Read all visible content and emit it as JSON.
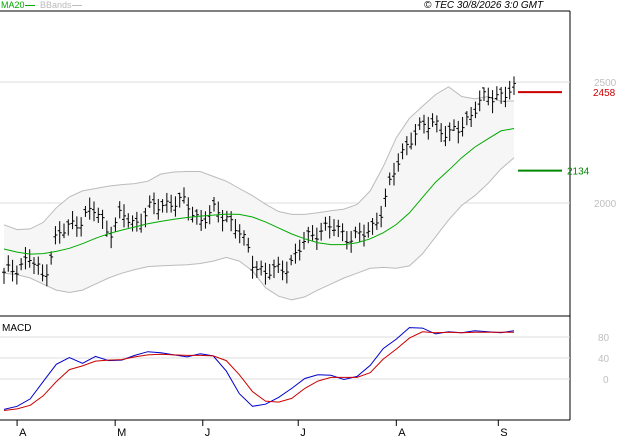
{
  "header": {
    "legend_ma": "MA20",
    "legend_bbands": "BBands",
    "copyright": "© TEC 30/8/2026 3:0 GMT"
  },
  "colors": {
    "ma": "#00aa00",
    "bbands": "#bbbbbb",
    "price": "#000000",
    "macd": "#0000cc",
    "signal": "#cc0000",
    "level_red": "#cc0000",
    "level_green": "#008800"
  },
  "chart_data": [
    {
      "type": "line",
      "title": "",
      "y_ticks": [
        "2500",
        "2000"
      ],
      "ylim": [
        1600,
        2800
      ],
      "levels": [
        {
          "value": 2458,
          "label": "2458",
          "color": "red"
        },
        {
          "value": 2134,
          "label": "2134",
          "color": "green"
        }
      ],
      "series": [
        {
          "name": "MA20",
          "values": [
            1810,
            1797,
            1789,
            1791,
            1800,
            1813,
            1832,
            1854,
            1873,
            1888,
            1901,
            1914,
            1924,
            1933,
            1940,
            1946,
            1950,
            1954,
            1953,
            1942,
            1922,
            1897,
            1872,
            1852,
            1836,
            1828,
            1828,
            1836,
            1852,
            1877,
            1911,
            1959,
            2023,
            2086,
            2135,
            2187,
            2231,
            2265,
            2298,
            2308
          ]
        },
        {
          "name": "BBands upper",
          "values": [
            1910,
            1890,
            1893,
            1920,
            1980,
            2025,
            2050,
            2060,
            2070,
            2076,
            2080,
            2090,
            2120,
            2128,
            2130,
            2130,
            2110,
            2090,
            2060,
            2030,
            1995,
            1965,
            1953,
            1953,
            1960,
            1968,
            1975,
            1994,
            2050,
            2150,
            2270,
            2350,
            2400,
            2448,
            2480,
            2440,
            2430,
            2440,
            2420,
            2422
          ]
        },
        {
          "name": "BBands lower",
          "values": [
            1710,
            1704,
            1690,
            1665,
            1640,
            1630,
            1640,
            1665,
            1690,
            1710,
            1725,
            1737,
            1740,
            1743,
            1745,
            1750,
            1760,
            1775,
            1760,
            1720,
            1650,
            1615,
            1600,
            1612,
            1640,
            1665,
            1690,
            1710,
            1730,
            1734,
            1730,
            1740,
            1790,
            1860,
            1930,
            1990,
            2030,
            2080,
            2140,
            2187
          ]
        }
      ],
      "candles_close": [
        1700,
        1740,
        1770,
        1690,
        1860,
        1900,
        1940,
        1970,
        1880,
        1950,
        1910,
        1970,
        1990,
        2010,
        1990,
        1930,
        1960,
        1950,
        1880,
        1760,
        1710,
        1720,
        1760,
        1840,
        1890,
        1900,
        1870,
        1860,
        1880,
        1990,
        2150,
        2270,
        2310,
        2340,
        2270,
        2320,
        2390,
        2440,
        2450,
        2460
      ]
    },
    {
      "type": "line",
      "title": "MACD",
      "y_ticks": [
        "80",
        "40",
        "0"
      ],
      "ylim": [
        -70,
        130
      ],
      "series": [
        {
          "name": "MACD",
          "values": [
            -58,
            -52,
            -38,
            -5,
            28,
            41,
            30,
            43,
            35,
            36,
            45,
            52,
            50,
            46,
            42,
            48,
            44,
            15,
            -28,
            -52,
            -48,
            -35,
            -18,
            1,
            8,
            7,
            -1,
            5,
            26,
            58,
            76,
            98,
            97,
            86,
            90,
            88,
            92,
            90,
            88,
            92
          ]
        },
        {
          "name": "Signal",
          "values": [
            -60,
            -57,
            -50,
            -32,
            -5,
            18,
            25,
            34,
            36,
            37,
            42,
            46,
            47,
            46,
            45,
            45,
            44,
            35,
            8,
            -24,
            -42,
            -44,
            -37,
            -18,
            -4,
            3,
            3,
            3,
            12,
            38,
            57,
            78,
            90,
            88,
            89,
            88,
            89,
            89,
            89,
            89
          ]
        }
      ]
    }
  ],
  "x_axis": {
    "labels": [
      {
        "label": "A",
        "idx": 1
      },
      {
        "label": "M",
        "idx": 8.5
      },
      {
        "label": "J",
        "idx": 15.2
      },
      {
        "label": "J",
        "idx": 22.5
      },
      {
        "label": "A",
        "idx": 30
      },
      {
        "label": "S",
        "idx": 37.8
      }
    ]
  }
}
